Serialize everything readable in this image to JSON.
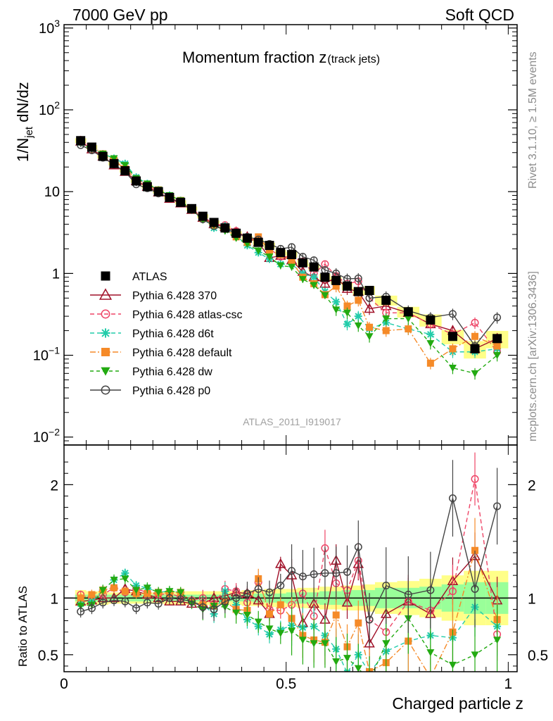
{
  "header": {
    "left": "7000 GeV pp",
    "right": "Soft QCD"
  },
  "side_text": {
    "rivet": "Rivet 3.1.10, ≥ 1.5M events",
    "source": "mcplots.cern.ch [arXiv:1306.3436]"
  },
  "colors": {
    "ATLAS": "#000000",
    "370": "#a01028",
    "atlas-csc": "#ee4466",
    "d6t": "#22ccaa",
    "default": "#f58a28",
    "dw": "#22aa11",
    "p0": "#444444",
    "band_stat": "#99ff99",
    "band_syst": "#ffff88"
  },
  "chart_data": [
    {
      "type": "line",
      "panel": "main",
      "title": "Momentum fraction z",
      "title_sub": "(track jets)",
      "ylabel": "1/N_jet dN/dz",
      "ylabel_main": "1/N",
      "ylabel_sub": "jet",
      "ylabel_tail": " dN/dz",
      "yscale": "log",
      "ylim": [
        0.008,
        1100
      ],
      "xlim": [
        0,
        1.02
      ],
      "watermark": "ATLAS_2011_I919017",
      "ytick_labels": [
        "10^{−2}",
        "10^{−1}",
        "1",
        "10",
        "10^{2}",
        "10^{3}"
      ],
      "yticks": [
        0.01,
        0.1,
        1,
        10,
        100,
        1000
      ],
      "legend_position": "left-middle",
      "x": [
        0.0375,
        0.0625,
        0.0875,
        0.1125,
        0.1375,
        0.1625,
        0.1875,
        0.2125,
        0.2375,
        0.2625,
        0.2875,
        0.3125,
        0.3375,
        0.3625,
        0.3875,
        0.4125,
        0.4375,
        0.4625,
        0.4875,
        0.5125,
        0.5375,
        0.5625,
        0.5875,
        0.6125,
        0.6375,
        0.6625,
        0.6875,
        0.725,
        0.775,
        0.825,
        0.875,
        0.925,
        0.975
      ],
      "series": [
        {
          "name": "ATLAS",
          "key": "ATLAS",
          "style": "data",
          "values": [
            42,
            35,
            27,
            22,
            18,
            13.5,
            11.5,
            10,
            8.5,
            7.4,
            6.2,
            5.0,
            4.2,
            3.6,
            3.1,
            2.7,
            2.4,
            2.2,
            1.8,
            1.7,
            1.35,
            1.2,
            0.9,
            0.82,
            0.7,
            0.6,
            0.62,
            0.47,
            0.34,
            0.27,
            0.17,
            0.12,
            0.16
          ]
        },
        {
          "name": "Pythia 6.428 370",
          "key": "370",
          "marker": "triangle",
          "dash": "",
          "values": [
            41,
            33,
            27,
            21,
            17.5,
            13.5,
            11.5,
            9.8,
            8.2,
            7.2,
            6.0,
            4.8,
            4.0,
            3.7,
            3.2,
            2.8,
            2.4,
            1.55,
            1.65,
            1.45,
            1.05,
            0.9,
            0.75,
            0.9,
            0.65,
            0.6,
            0.37,
            0.4,
            0.33,
            0.24,
            0.2,
            0.12,
            0.16
          ]
        },
        {
          "name": "Pythia 6.428 atlas-csc",
          "key": "atlas-csc",
          "marker": "circle",
          "dash": "6,4",
          "values": [
            43,
            35,
            28,
            24,
            19,
            14.5,
            12,
            10.3,
            8.8,
            7.5,
            6.1,
            5.0,
            4.0,
            3.9,
            3.3,
            2.6,
            2.7,
            2.0,
            1.6,
            1.6,
            1.4,
            1.0,
            1.3,
            0.93,
            0.75,
            0.8,
            0.5,
            0.33,
            0.33,
            0.24,
            0.18,
            0.25,
            0.11
          ]
        },
        {
          "name": "Pythia 6.428 d6t",
          "key": "d6t",
          "marker": "star",
          "dash": "6,4",
          "values": [
            40,
            34,
            29,
            25.5,
            22,
            15,
            12.5,
            10.5,
            9,
            7.8,
            6.0,
            4.7,
            3.6,
            3.8,
            2.9,
            2.2,
            1.8,
            1.5,
            1.3,
            1.3,
            1.0,
            0.9,
            0.6,
            0.45,
            0.24,
            0.3,
            0.21,
            0.25,
            0.21,
            0.18,
            0.11,
            0.11,
            0.12
          ]
        },
        {
          "name": "Pythia 6.428 default",
          "key": "default",
          "marker": "square",
          "dash": "8,3,2,3",
          "values": [
            42,
            36,
            29,
            24,
            19,
            14,
            12,
            10.5,
            8.8,
            7.8,
            6.0,
            4.7,
            3.9,
            3.5,
            2.8,
            2.4,
            2.8,
            1.9,
            1.7,
            1.4,
            0.9,
            0.75,
            0.55,
            0.7,
            0.4,
            0.47,
            0.22,
            0.2,
            0.21,
            0.08,
            0.12,
            0.17,
            0.13
          ]
        },
        {
          "name": "Pythia 6.428 dw",
          "key": "dw",
          "marker": "tridown",
          "dash": "5,4",
          "values": [
            39,
            33,
            29,
            25.5,
            21,
            14.5,
            12.5,
            10.5,
            9,
            7.8,
            5.9,
            4.5,
            3.9,
            3.3,
            2.7,
            2.3,
            1.9,
            1.6,
            1.25,
            1.2,
            0.85,
            0.72,
            0.54,
            0.36,
            0.33,
            0.23,
            0.17,
            0.28,
            0.28,
            0.14,
            0.07,
            0.06,
            0.1
          ]
        },
        {
          "name": "Pythia 6.428 p0",
          "key": "p0",
          "marker": "circle",
          "dash": "",
          "values": [
            37,
            32,
            26,
            21.5,
            17.5,
            12.3,
            11,
            9.5,
            8.5,
            7.3,
            6.0,
            4.6,
            3.8,
            3.5,
            3.1,
            2.8,
            2.6,
            2.3,
            2.0,
            2.1,
            1.6,
            1.45,
            1.1,
            1.0,
            0.86,
            0.87,
            0.5,
            0.52,
            0.35,
            0.29,
            0.32,
            0.13,
            0.29
          ]
        }
      ]
    },
    {
      "type": "line",
      "panel": "ratio",
      "ylabel": "Ratio to ATLAS",
      "xlabel": "Charged particle z",
      "ylim": [
        0.35,
        2.35
      ],
      "xlim": [
        0,
        1.02
      ],
      "xticks": [
        0,
        0.5,
        1
      ],
      "xtick_labels": [
        "0",
        "0.5",
        "1"
      ],
      "yticks": [
        0.5,
        1,
        2
      ],
      "ytick_labels": [
        "0.5",
        "1",
        "2"
      ],
      "band_stat": [
        0.03,
        0.03,
        0.03,
        0.03,
        0.03,
        0.03,
        0.03,
        0.03,
        0.03,
        0.03,
        0.03,
        0.03,
        0.03,
        0.03,
        0.03,
        0.03,
        0.04,
        0.04,
        0.04,
        0.05,
        0.05,
        0.05,
        0.06,
        0.06,
        0.07,
        0.07,
        0.07,
        0.09,
        0.09,
        0.1,
        0.12,
        0.14,
        0.14
      ],
      "band_syst": [
        0.07,
        0.06,
        0.06,
        0.05,
        0.05,
        0.05,
        0.05,
        0.05,
        0.06,
        0.06,
        0.06,
        0.06,
        0.06,
        0.06,
        0.06,
        0.07,
        0.07,
        0.08,
        0.08,
        0.08,
        0.09,
        0.09,
        0.1,
        0.1,
        0.11,
        0.11,
        0.12,
        0.14,
        0.15,
        0.17,
        0.2,
        0.24,
        0.24
      ],
      "series": [
        {
          "key": "370",
          "values": [
            0.97,
            0.98,
            1.0,
            1.0,
            1.08,
            1.06,
            1.03,
            1.0,
            0.97,
            0.97,
            0.95,
            0.95,
            1.0,
            1.02,
            1.05,
            1.04,
            0.98,
            0.86,
            1.3,
            1.2,
            0.78,
            0.95,
            0.81,
            1.33,
            0.96,
            1.3,
            0.6,
            0.86,
            0.97,
            0.86,
            1.15,
            1.37,
            0.98
          ]
        },
        {
          "key": "atlas-csc",
          "values": [
            1.03,
            1.0,
            1.03,
            1.09,
            1.05,
            1.08,
            1.05,
            1.03,
            1.04,
            1.01,
            0.98,
            1.0,
            0.95,
            1.08,
            1.06,
            0.96,
            1.14,
            0.9,
            0.89,
            0.94,
            1.04,
            0.84,
            1.44,
            1.13,
            1.07,
            1.33,
            0.81,
            0.7,
            0.97,
            0.89,
            1.06,
            2.05,
            0.68
          ]
        },
        {
          "key": "d6t",
          "values": [
            0.95,
            0.97,
            1.07,
            1.16,
            1.22,
            1.11,
            1.09,
            1.05,
            1.06,
            1.05,
            0.97,
            0.94,
            0.86,
            1.06,
            0.94,
            0.81,
            0.75,
            0.68,
            0.72,
            0.76,
            0.74,
            0.75,
            0.67,
            0.55,
            0.34,
            0.5,
            0.34,
            0.53,
            0.62,
            0.67,
            0.65,
            0.92,
            0.75
          ]
        },
        {
          "key": "default",
          "values": [
            1.0,
            1.03,
            1.07,
            1.09,
            1.06,
            1.04,
            1.04,
            1.05,
            1.04,
            1.05,
            0.97,
            0.94,
            0.93,
            0.97,
            0.9,
            0.89,
            1.17,
            0.86,
            0.94,
            0.82,
            0.67,
            0.63,
            0.61,
            0.85,
            0.57,
            0.78,
            0.35,
            0.43,
            0.62,
            0.3,
            0.7,
            1.42,
            0.81
          ]
        },
        {
          "key": "dw",
          "values": [
            0.93,
            0.94,
            1.07,
            1.16,
            1.17,
            1.07,
            1.09,
            1.05,
            1.06,
            1.05,
            0.95,
            0.9,
            0.93,
            0.92,
            0.87,
            0.85,
            0.79,
            0.73,
            0.69,
            0.71,
            0.63,
            0.6,
            0.6,
            0.44,
            0.47,
            0.38,
            0.27,
            0.6,
            0.82,
            0.52,
            0.41,
            0.5,
            0.63
          ]
        },
        {
          "key": "p0",
          "values": [
            0.88,
            0.91,
            0.96,
            0.98,
            0.97,
            0.91,
            0.96,
            0.95,
            1.0,
            0.99,
            0.97,
            0.92,
            0.9,
            0.97,
            1.0,
            1.04,
            1.08,
            1.05,
            1.11,
            1.24,
            1.19,
            1.21,
            1.22,
            1.22,
            1.23,
            1.45,
            0.81,
            1.11,
            1.03,
            1.07,
            1.88,
            1.08,
            1.81
          ]
        }
      ]
    }
  ]
}
